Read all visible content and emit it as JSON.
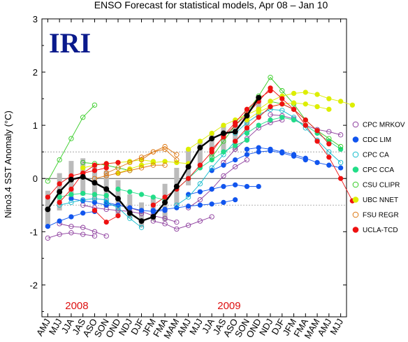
{
  "chart_data": {
    "type": "line",
    "title": "ENSO Forecast for statistical models, Apr 08 – Jan 10",
    "ylabel": "Nino3.4 SST Anomaly (°C)",
    "xlabel": "",
    "ylim": [
      -2.6,
      3
    ],
    "yticks": [
      -2,
      -1,
      0,
      1,
      2,
      3
    ],
    "logo_text": "IRI",
    "year_labels": [
      {
        "text": "2008",
        "x": "JJA"
      },
      {
        "text": "2009",
        "x": "JAS_2"
      }
    ],
    "categories": [
      "AMJ",
      "MJJ",
      "JJA",
      "JAS",
      "ASO",
      "SON",
      "OND",
      "NDJ",
      "DJF",
      "JFM",
      "FMA",
      "MAM",
      "AMJ",
      "MJJ",
      "JJA",
      "JAS",
      "ASO",
      "SON",
      "OND",
      "NDJ",
      "DJF",
      "JFM",
      "FMA",
      "MAM",
      "AMJ",
      "MJJ"
    ],
    "observed": {
      "name": "",
      "values": [
        -0.58,
        -0.25,
        -0.02,
        0.03,
        -0.08,
        -0.2,
        -0.38,
        -0.65,
        -0.8,
        -0.72,
        -0.45,
        -0.15,
        0.22,
        0.58,
        0.75,
        0.85,
        0.88,
        1.18,
        1.52,
        null,
        null,
        null,
        null,
        null,
        null,
        null
      ]
    },
    "series": [
      {
        "name": "CPC MRKOV",
        "color": "#8B3A9C",
        "hollow": true,
        "runs": [
          {
            "start": 0,
            "values": [
              -1.12,
              -1.05,
              -1.02,
              -1.05,
              -1.08
            ]
          },
          {
            "start": 1,
            "values": [
              -0.85,
              -0.9,
              -0.92,
              -1.0,
              -1.08
            ]
          },
          {
            "start": 3,
            "values": [
              -0.5,
              -0.55,
              -0.58,
              -0.6,
              -0.62,
              -0.66
            ]
          },
          {
            "start": 6,
            "values": [
              -0.5,
              -0.55,
              -0.62,
              -0.7,
              -0.75,
              -0.82
            ]
          },
          {
            "start": 9,
            "values": [
              -0.8,
              -0.85,
              -0.95,
              -0.88,
              -0.8,
              -0.72
            ]
          },
          {
            "start": 12,
            "values": [
              -0.55,
              -0.4,
              -0.2,
              0.05,
              0.22,
              0.35
            ]
          },
          {
            "start": 15,
            "values": [
              0.3,
              0.55,
              0.75,
              0.95,
              1.05,
              1.1
            ]
          },
          {
            "start": 19,
            "values": [
              1.2,
              1.18,
              1.12,
              1.0,
              0.92,
              0.88,
              0.82
            ]
          }
        ]
      },
      {
        "name": "CDC LIM",
        "color": "#1155EE",
        "hollow": false,
        "runs": [
          {
            "start": 0,
            "values": [
              -0.9,
              -0.8,
              -0.72,
              -0.65,
              -0.62
            ]
          },
          {
            "start": 2,
            "values": [
              -0.38,
              -0.42,
              -0.45,
              -0.5,
              -0.5
            ]
          },
          {
            "start": 5,
            "values": [
              -0.45,
              -0.5,
              -0.55,
              -0.6,
              -0.62,
              -0.6
            ]
          },
          {
            "start": 9,
            "values": [
              -0.6,
              -0.58,
              -0.55,
              -0.52,
              -0.5,
              -0.48,
              -0.45,
              -0.4
            ]
          },
          {
            "start": 12,
            "values": [
              -0.3,
              -0.25,
              -0.2,
              -0.15,
              -0.12,
              -0.15,
              -0.15
            ]
          },
          {
            "start": 14,
            "values": [
              0.15,
              0.25,
              0.35,
              0.45,
              0.5,
              0.52,
              0.48,
              0.42,
              0.35
            ]
          },
          {
            "start": 17,
            "values": [
              0.55,
              0.58,
              0.55,
              0.5,
              0.45,
              0.38,
              0.3,
              0.25,
              0.2
            ]
          }
        ]
      },
      {
        "name": "CPC CA",
        "color": "#11BBCC",
        "hollow": true,
        "runs": [
          {
            "start": 1,
            "values": [
              -0.5,
              -0.45,
              -0.4,
              -0.38,
              -0.4
            ]
          },
          {
            "start": 5,
            "values": [
              -0.45,
              -0.55,
              -0.75,
              -0.92
            ]
          },
          {
            "start": 11,
            "values": [
              -0.5,
              -0.35,
              -0.1,
              0.2,
              0.45,
              0.7,
              0.9
            ]
          },
          {
            "start": 16,
            "values": [
              0.85,
              1.05,
              1.2,
              1.3,
              1.28,
              1.15,
              0.95,
              0.72,
              0.5,
              0.3
            ]
          }
        ]
      },
      {
        "name": "CPC CCA",
        "color": "#22DD88",
        "hollow": false,
        "runs": [
          {
            "start": 1,
            "values": [
              -0.35,
              -0.3,
              -0.28,
              -0.3,
              -0.32
            ]
          },
          {
            "start": 6,
            "values": [
              -0.2,
              -0.25,
              -0.3,
              -0.35,
              -0.4
            ]
          },
          {
            "start": 11,
            "values": [
              -0.2,
              0.0,
              0.2,
              0.35,
              0.5,
              0.62,
              0.72
            ]
          },
          {
            "start": 17,
            "values": [
              0.85,
              1.0,
              1.1,
              1.15,
              1.1,
              1.0,
              0.85,
              0.7,
              0.55
            ]
          }
        ]
      },
      {
        "name": "CSU CLIPR",
        "color": "#33CC22",
        "hollow": true,
        "runs": [
          {
            "start": 0,
            "values": [
              -0.05,
              0.35,
              0.75,
              1.15,
              1.38
            ]
          },
          {
            "start": 3,
            "values": [
              0.3,
              0.28,
              0.25,
              0.2,
              0.15
            ]
          },
          {
            "start": 14,
            "values": [
              0.4,
              0.7,
              1.0,
              1.25,
              1.55,
              1.9,
              1.65,
              1.4,
              1.1
            ]
          },
          {
            "start": 19,
            "values": [
              1.45,
              1.4,
              1.3,
              1.1,
              0.9,
              0.75,
              0.6
            ]
          }
        ]
      },
      {
        "name": "UBC NNET",
        "color": "#DDEE00",
        "hollow": false,
        "runs": [
          {
            "start": 3,
            "values": [
              0.2,
              0.25,
              0.28,
              0.3,
              0.32,
              0.35,
              0.32
            ]
          },
          {
            "start": 6,
            "values": [
              0.1,
              0.18,
              0.25,
              0.3,
              0.32,
              0.3,
              0.28
            ]
          },
          {
            "start": 12,
            "values": [
              0.55,
              0.7,
              0.85,
              1.0,
              1.1,
              1.2,
              1.3
            ]
          },
          {
            "start": 18,
            "values": [
              1.3,
              1.45,
              1.55,
              1.6,
              1.62,
              1.58,
              1.5,
              1.45,
              1.38
            ]
          },
          {
            "start": 17,
            "values": [
              1.1,
              1.25,
              1.35,
              1.4,
              1.42,
              1.4,
              1.35,
              1.3
            ]
          }
        ]
      },
      {
        "name": "FSU REGR",
        "color": "#DD7711",
        "hollow": true,
        "runs": [
          {
            "start": 5,
            "values": [
              0.1,
              0.2,
              0.3,
              0.4,
              0.5,
              0.6,
              0.45
            ]
          },
          {
            "start": 4,
            "values": [
              0.0,
              0.05,
              0.1,
              0.15,
              0.2,
              0.25,
              0.25
            ]
          },
          {
            "start": 8,
            "values": [
              0.35,
              0.5,
              0.55,
              0.35
            ]
          }
        ]
      },
      {
        "name": "UCLA-TCD",
        "color": "#EE1111",
        "hollow": false,
        "runs": [
          {
            "start": 0,
            "values": [
              -0.35,
              -0.1,
              0.05,
              0.1,
              0.15,
              0.2
            ]
          },
          {
            "start": 1,
            "values": [
              -0.45,
              -0.2,
              0.1,
              0.25,
              0.28,
              0.3
            ]
          },
          {
            "start": 4,
            "values": [
              -0.6,
              -0.82,
              -0.7
            ]
          },
          {
            "start": 9,
            "values": [
              -0.5,
              -0.35,
              -0.2,
              0.0,
              0.25,
              0.5,
              0.8,
              1.05,
              1.3,
              1.5,
              1.65
            ]
          },
          {
            "start": 14,
            "values": [
              0.55,
              0.78,
              1.0,
              1.2,
              1.45,
              1.7,
              1.5,
              1.3,
              1.0,
              0.7,
              0.4,
              0.0,
              -0.42
            ]
          },
          {
            "start": 16,
            "values": [
              0.7,
              0.95,
              1.15,
              1.35,
              1.4,
              1.3,
              1.1,
              0.9,
              0.65
            ]
          }
        ]
      }
    ],
    "legend_placement": "right",
    "grid": false,
    "reference_lines": [
      0.5,
      -0.5
    ]
  }
}
